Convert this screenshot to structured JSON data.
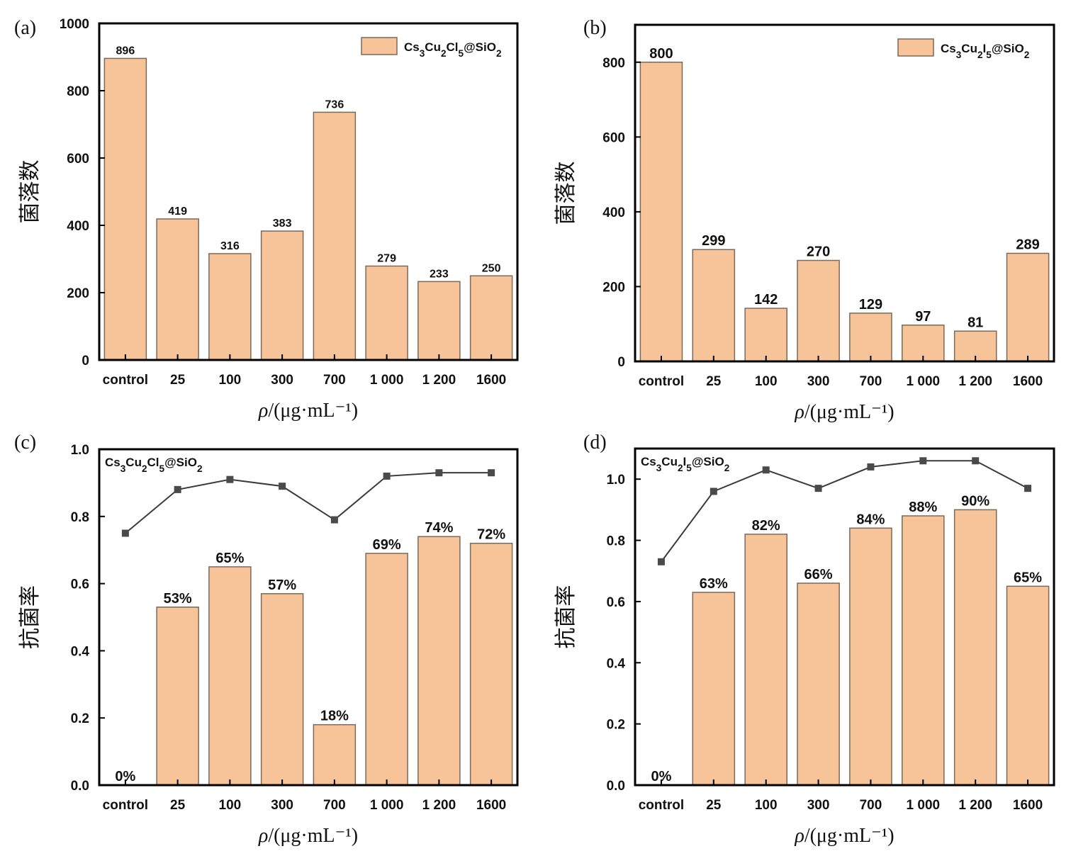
{
  "chart_data": [
    {
      "id": "a",
      "panel_label": "(a)",
      "type": "bar",
      "title": "",
      "xlabel": "ρ/(μg·mL⁻¹)",
      "ylabel": "菌落数",
      "categories": [
        "control",
        "25",
        "100",
        "300",
        "700",
        "1 000",
        "1 200",
        "1600"
      ],
      "series": [
        {
          "name": "Cs3Cu2Cl5@SiO2",
          "values": [
            896,
            419,
            316,
            383,
            736,
            279,
            233,
            250
          ],
          "labels": [
            "896",
            "419",
            "316",
            "383",
            "736",
            "279",
            "233",
            "250"
          ]
        }
      ],
      "ylim": [
        0,
        1000
      ],
      "yticks": [
        0,
        200,
        400,
        600,
        800,
        1000
      ],
      "legend": {
        "text": "Cs3Cu2Cl5@SiO2",
        "position": "top-right"
      },
      "colors": {
        "bar": "#f7c499",
        "bar_edge": "#7a6a5a"
      }
    },
    {
      "id": "b",
      "panel_label": "(b)",
      "type": "bar",
      "title": "",
      "xlabel": "ρ/(μg·mL⁻¹)",
      "ylabel": "菌落数",
      "categories": [
        "control",
        "25",
        "100",
        "300",
        "700",
        "1 000",
        "1 200",
        "1600"
      ],
      "series": [
        {
          "name": "Cs3Cu2I5@SiO2",
          "values": [
            800,
            299,
            142,
            270,
            129,
            97,
            81,
            289
          ],
          "labels": [
            "800",
            "299",
            "142",
            "270",
            "129",
            "97",
            "81",
            "289"
          ]
        }
      ],
      "ylim": [
        0,
        900
      ],
      "yticks": [
        0,
        200,
        400,
        600,
        800
      ],
      "legend": {
        "text": "Cs3Cu2I5@SiO2",
        "position": "top-right"
      },
      "colors": {
        "bar": "#f7c499",
        "bar_edge": "#7a6a5a"
      }
    },
    {
      "id": "c",
      "panel_label": "(c)",
      "type": "bar",
      "title": "",
      "xlabel": "ρ/(μg·mL⁻¹)",
      "ylabel": "抗菌率",
      "categories": [
        "control",
        "25",
        "100",
        "300",
        "700",
        "1 000",
        "1 200",
        "1600"
      ],
      "series": [
        {
          "name": "antibacterial rate",
          "kind": "bar",
          "values": [
            0,
            0.53,
            0.65,
            0.57,
            0.18,
            0.69,
            0.74,
            0.72
          ],
          "labels": [
            "0%",
            "53%",
            "65%",
            "57%",
            "18%",
            "69%",
            "74%",
            "72%"
          ]
        },
        {
          "name": "line",
          "kind": "line",
          "values": [
            0.75,
            0.88,
            0.91,
            0.89,
            0.79,
            0.92,
            0.93,
            0.93
          ]
        }
      ],
      "ylim": [
        0,
        1.0
      ],
      "yticks": [
        "0.0",
        "0.2",
        "0.4",
        "0.6",
        "0.8",
        "1.0"
      ],
      "annotation": "Cs3Cu2Cl5@SiO2",
      "colors": {
        "bar": "#f7c499",
        "bar_edge": "#7a6a5a",
        "line": "#3a3a3a",
        "marker": "#4a4a4a"
      }
    },
    {
      "id": "d",
      "panel_label": "(d)",
      "type": "bar",
      "title": "",
      "xlabel": "ρ/(μg·mL⁻¹)",
      "ylabel": "抗菌率",
      "categories": [
        "control",
        "25",
        "100",
        "300",
        "700",
        "1 000",
        "1 200",
        "1600"
      ],
      "series": [
        {
          "name": "antibacterial rate",
          "kind": "bar",
          "values": [
            0,
            0.63,
            0.82,
            0.66,
            0.84,
            0.88,
            0.9,
            0.65
          ],
          "labels": [
            "0%",
            "63%",
            "82%",
            "66%",
            "84%",
            "88%",
            "90%",
            "65%"
          ]
        },
        {
          "name": "line",
          "kind": "line",
          "values": [
            0.73,
            0.96,
            1.03,
            0.97,
            1.04,
            1.06,
            1.06,
            0.97
          ]
        }
      ],
      "ylim": [
        0,
        1.1
      ],
      "yticks": [
        "0.0",
        "0.2",
        "0.4",
        "0.6",
        "0.8",
        "1.0"
      ],
      "annotation": "Cs3Cu2I5@SiO2",
      "colors": {
        "bar": "#f7c499",
        "bar_edge": "#7a6a5a",
        "line": "#3a3a3a",
        "marker": "#4a4a4a"
      }
    }
  ]
}
